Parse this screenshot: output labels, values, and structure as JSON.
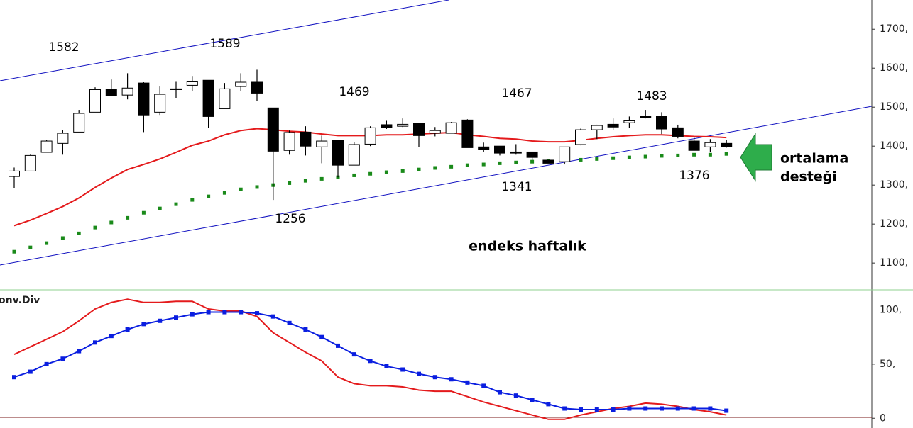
{
  "chart_data": [
    {
      "type": "candlestick",
      "open": [
        1322,
        1336,
        1384,
        1407,
        1436,
        1487,
        1545,
        1531,
        1562,
        1487,
        1545,
        1556,
        1569,
        1496,
        1553,
        1564,
        1498,
        1389,
        1436,
        1398,
        1415,
        1351,
        1405,
        1455,
        1451,
        1458,
        1433,
        1433,
        1467,
        1398,
        1400,
        1385,
        1385,
        1364,
        1360,
        1404,
        1442,
        1456,
        1460,
        1476,
        1476,
        1447,
        1413,
        1398,
        1407
      ],
      "high": [
        1345,
        1378,
        1416,
        1442,
        1493,
        1551,
        1571,
        1587,
        1564,
        1553,
        1565,
        1580,
        1569,
        1562,
        1587,
        1596,
        1498,
        1440,
        1451,
        1427,
        1415,
        1411,
        1451,
        1465,
        1471,
        1458,
        1449,
        1462,
        1469,
        1409,
        1400,
        1405,
        1385,
        1364,
        1398,
        1445,
        1455,
        1471,
        1476,
        1493,
        1487,
        1455,
        1424,
        1418,
        1415
      ],
      "low": [
        1293,
        1336,
        1384,
        1378,
        1436,
        1487,
        1529,
        1520,
        1436,
        1480,
        1524,
        1542,
        1447,
        1496,
        1542,
        1516,
        1262,
        1378,
        1376,
        1356,
        1320,
        1351,
        1400,
        1444,
        1449,
        1398,
        1425,
        1433,
        1396,
        1385,
        1376,
        1378,
        1364,
        1356,
        1353,
        1402,
        1418,
        1442,
        1447,
        1471,
        1431,
        1420,
        1389,
        1384,
        1396
      ],
      "close": [
        1336,
        1376,
        1413,
        1433,
        1484,
        1545,
        1529,
        1549,
        1480,
        1533,
        1547,
        1565,
        1476,
        1547,
        1564,
        1536,
        1387,
        1435,
        1400,
        1413,
        1351,
        1404,
        1447,
        1447,
        1456,
        1427,
        1440,
        1460,
        1396,
        1391,
        1382,
        1382,
        1371,
        1356,
        1398,
        1442,
        1453,
        1449,
        1465,
        1473,
        1444,
        1425,
        1389,
        1409,
        1398
      ],
      "up_color": "#ffffff",
      "down_color": "#000000",
      "overlays": [
        {
          "color": "#e41a1c",
          "style": "solid",
          "values": [
            1196,
            1210,
            1227,
            1245,
            1267,
            1294,
            1318,
            1340,
            1353,
            1367,
            1384,
            1402,
            1413,
            1429,
            1440,
            1445,
            1442,
            1438,
            1436,
            1431,
            1427,
            1427,
            1427,
            1429,
            1429,
            1431,
            1433,
            1435,
            1429,
            1425,
            1420,
            1418,
            1413,
            1411,
            1411,
            1415,
            1420,
            1424,
            1427,
            1429,
            1429,
            1427,
            1425,
            1424,
            1422
          ]
        },
        {
          "color": "#1a8a1a",
          "style": "dotted",
          "values": [
            1129,
            1140,
            1151,
            1164,
            1176,
            1191,
            1204,
            1216,
            1229,
            1240,
            1251,
            1262,
            1271,
            1280,
            1289,
            1295,
            1300,
            1305,
            1311,
            1316,
            1320,
            1325,
            1329,
            1333,
            1336,
            1340,
            1344,
            1347,
            1351,
            1353,
            1356,
            1358,
            1360,
            1362,
            1364,
            1365,
            1367,
            1369,
            1371,
            1373,
            1375,
            1376,
            1378,
            1378,
            1380
          ]
        }
      ],
      "ylim": [
        1033,
        1775
      ],
      "yticks": [
        {
          "value": 1100,
          "label": "1100,"
        },
        {
          "value": 1200,
          "label": "1200,"
        },
        {
          "value": 1300,
          "label": "1300,"
        },
        {
          "value": 1400,
          "label": "1400,"
        },
        {
          "value": 1500,
          "label": "1500,"
        },
        {
          "value": 1600,
          "label": "1600,"
        },
        {
          "value": 1700,
          "label": "1700,"
        }
      ],
      "annotations": [
        "1582",
        "1589",
        "1469",
        "1467",
        "1483",
        "1256",
        "1341",
        "1376",
        "endeks haftalık",
        "ortalama",
        "desteği"
      ]
    },
    {
      "type": "line",
      "title": "onv.Div",
      "series": [
        {
          "color": "#e41a1c",
          "markers": false,
          "values": [
            59,
            66,
            73,
            80,
            90,
            101,
            107,
            110,
            107,
            107,
            108,
            108,
            101,
            99,
            99,
            94,
            79,
            70,
            61,
            53,
            38,
            32,
            30,
            30,
            29,
            26,
            25,
            25,
            20,
            15,
            11,
            7,
            3,
            -1,
            -1,
            3,
            6,
            9,
            11,
            14,
            13,
            11,
            8,
            6,
            3
          ]
        },
        {
          "color": "#0a1ee0",
          "markers": true,
          "values": [
            38,
            43,
            50,
            55,
            62,
            70,
            76,
            82,
            87,
            90,
            93,
            96,
            98,
            98,
            98,
            97,
            94,
            88,
            82,
            75,
            67,
            59,
            53,
            48,
            45,
            41,
            38,
            36,
            33,
            30,
            24,
            21,
            17,
            13,
            9,
            8,
            8,
            8,
            9,
            9,
            9,
            9,
            9,
            9,
            7
          ]
        }
      ],
      "ylim": [
        -9,
        118
      ],
      "yticks": [
        0,
        {
          "value": 50,
          "label": "50,"
        },
        {
          "value": 100,
          "label": "100,"
        }
      ]
    }
  ]
}
